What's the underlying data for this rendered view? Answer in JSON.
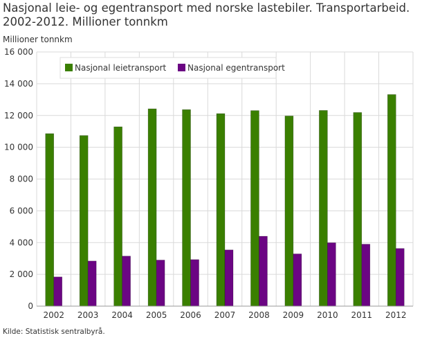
{
  "chart_data": {
    "type": "bar",
    "title": "Nasjonal leie- og egentransport med norske lastebiler. Transportarbeid. 2002-2012. Millioner tonnkm",
    "ylabel": "Millioner tonnkm",
    "xlabel": "",
    "source": "Kilde: Statistisk sentralbyrå.",
    "categories": [
      "2002",
      "2003",
      "2004",
      "2005",
      "2006",
      "2007",
      "2008",
      "2009",
      "2010",
      "2011",
      "2012"
    ],
    "series": [
      {
        "name": "Nasjonal leietransport",
        "color": "#3a7f00",
        "values": [
          10860,
          10740,
          11290,
          12420,
          12370,
          12120,
          12310,
          11970,
          12320,
          12190,
          13320
        ]
      },
      {
        "name": "Nasjonal egentransport",
        "color": "#6b0583",
        "values": [
          1840,
          2840,
          3150,
          2900,
          2930,
          3540,
          4400,
          3290,
          3990,
          3900,
          3630
        ]
      }
    ],
    "ylim": [
      0,
      16000
    ],
    "yticks": [
      0,
      2000,
      4000,
      6000,
      8000,
      10000,
      12000,
      14000,
      16000
    ],
    "ytick_labels": [
      "0",
      "2 000",
      "4 000",
      "6 000",
      "8 000",
      "10 000",
      "12 000",
      "14 000",
      "16 000"
    ],
    "grid": true,
    "legend_position": "top-left"
  }
}
